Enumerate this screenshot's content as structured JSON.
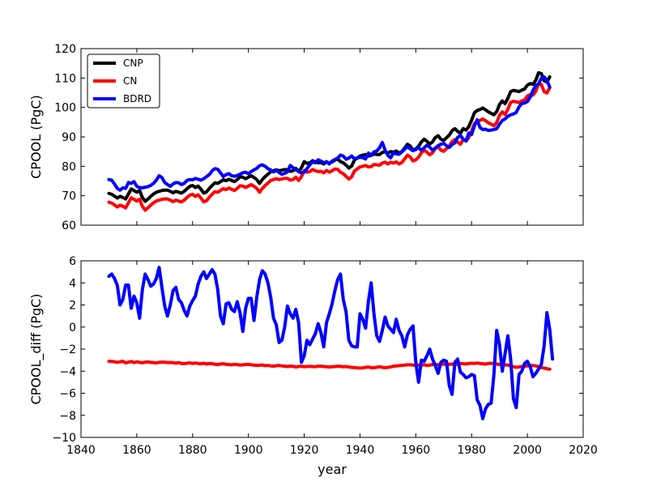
{
  "chart_data": [
    {
      "type": "line",
      "id": "top",
      "ylabel": "CPOOL (PgC)",
      "xlabel": "",
      "xlim": [
        1840,
        2020
      ],
      "ylim": [
        60,
        120
      ],
      "yticks": [
        60,
        70,
        80,
        90,
        100,
        110,
        120
      ],
      "yticklabels": [
        "60",
        "70",
        "80",
        "90",
        "100",
        "110",
        "120"
      ],
      "legend": {
        "placement": "top-left",
        "entries": [
          "CNP",
          "CN",
          "BDRD"
        ]
      },
      "series": [
        {
          "name": "CNP",
          "color": "#000000",
          "x_start": 1850,
          "x_step": 1,
          "values": [
            70.8,
            70.5,
            69.9,
            69.2,
            69.8,
            69.4,
            68.9,
            70.6,
            72.3,
            71.8,
            71.2,
            71.8,
            69.4,
            68.1,
            68.9,
            69.8,
            70.6,
            71.2,
            71.5,
            71.8,
            71.9,
            71.9,
            71.5,
            71.0,
            71.5,
            71.2,
            70.9,
            71.5,
            72.4,
            73.2,
            73.5,
            72.8,
            73.3,
            72.2,
            70.9,
            71.3,
            72.5,
            73.5,
            74.4,
            74.2,
            74.8,
            75.4,
            75.1,
            75.6,
            75.2,
            74.8,
            75.5,
            76.4,
            76.3,
            75.8,
            76.3,
            76.8,
            76.2,
            75.5,
            74.2,
            75.5,
            76.5,
            77.3,
            78.2,
            78.5,
            78.8,
            78.5,
            78.7,
            78.9,
            78.9,
            78.3,
            78.5,
            79.3,
            78.2,
            79.5,
            81.6,
            81.0,
            81.2,
            81.9,
            81.5,
            81.2,
            81.3,
            80.8,
            81.6,
            81.0,
            81.5,
            82.1,
            82.5,
            81.6,
            81.2,
            80.4,
            79.4,
            80.1,
            82.1,
            82.8,
            83.5,
            83.8,
            84.0,
            83.5,
            83.7,
            84.2,
            84.0,
            84.0,
            84.7,
            85.0,
            84.5,
            85.0,
            84.8,
            85.2,
            84.5,
            85.0,
            86.2,
            87.5,
            86.9,
            85.5,
            85.9,
            86.8,
            88.3,
            89.2,
            88.5,
            87.6,
            88.3,
            89.8,
            90.4,
            89.2,
            88.8,
            89.7,
            90.6,
            92.1,
            92.8,
            91.9,
            91.2,
            92.8,
            92.3,
            93.5,
            95.7,
            98.2,
            99.0,
            99.3,
            99.8,
            99.2,
            98.5,
            98.0,
            97.5,
            98.6,
            101.0,
            102.2,
            101.3,
            103.1,
            105.4,
            105.8,
            105.6,
            105.4,
            105.9,
            106.3,
            107.6,
            108.1,
            107.9,
            109.2,
            111.8,
            111.5,
            109.1,
            108.6,
            110.4
          ]
        },
        {
          "name": "CN",
          "color": "#ff0000",
          "x_start": 1850,
          "x_step": 1,
          "values": [
            67.8,
            67.5,
            66.9,
            66.2,
            66.8,
            66.4,
            65.9,
            67.6,
            69.3,
            68.8,
            68.2,
            68.8,
            66.4,
            65.1,
            65.9,
            66.8,
            67.6,
            68.2,
            68.5,
            68.8,
            68.9,
            68.9,
            68.5,
            68.0,
            68.5,
            68.2,
            67.9,
            68.5,
            69.4,
            70.2,
            70.5,
            69.8,
            70.3,
            69.2,
            67.9,
            68.3,
            69.5,
            70.5,
            71.4,
            71.2,
            71.8,
            72.4,
            72.1,
            72.6,
            72.2,
            71.8,
            72.5,
            73.4,
            73.3,
            72.8,
            73.3,
            73.8,
            73.2,
            72.5,
            71.2,
            72.5,
            73.5,
            74.3,
            75.2,
            75.5,
            75.8,
            75.5,
            75.7,
            75.9,
            75.9,
            75.3,
            75.5,
            76.3,
            75.2,
            76.5,
            78.6,
            78.0,
            78.2,
            78.9,
            78.5,
            78.2,
            78.3,
            77.8,
            78.6,
            78.0,
            78.5,
            79.1,
            79.0,
            78.0,
            77.5,
            76.6,
            75.7,
            76.4,
            78.4,
            79.1,
            79.8,
            80.0,
            80.3,
            79.8,
            79.9,
            80.6,
            80.5,
            80.4,
            81.1,
            81.4,
            80.8,
            81.4,
            81.1,
            81.5,
            80.8,
            81.3,
            82.5,
            83.8,
            83.2,
            81.8,
            82.2,
            83.1,
            84.6,
            85.5,
            84.8,
            83.9,
            84.6,
            86.1,
            86.7,
            85.5,
            85.1,
            86.0,
            86.9,
            88.4,
            89.1,
            88.2,
            87.5,
            89.1,
            88.6,
            89.8,
            92.0,
            94.5,
            95.3,
            95.6,
            96.1,
            95.5,
            94.8,
            94.3,
            93.8,
            94.9,
            97.3,
            98.5,
            97.6,
            99.4,
            101.7,
            102.1,
            101.9,
            101.7,
            102.2,
            102.6,
            103.9,
            104.4,
            104.2,
            105.5,
            108.1,
            107.8,
            105.4,
            104.9,
            106.7
          ]
        },
        {
          "name": "BDRD",
          "color": "#0000ff",
          "x_start": 1850,
          "x_step": 1,
          "values": [
            75.5,
            75.3,
            74.0,
            72.5,
            71.9,
            72.7,
            72.5,
            74.5,
            74.2,
            74.8,
            73.2,
            72.8,
            72.7,
            72.9,
            73.1,
            73.5,
            74.2,
            75.3,
            76.8,
            76.2,
            74.5,
            73.8,
            73.2,
            74.0,
            74.5,
            74.4,
            73.8,
            74.2,
            75.2,
            75.5,
            75.4,
            75.9,
            75.6,
            75.3,
            75.8,
            76.5,
            77.2,
            78.5,
            79.2,
            79.0,
            77.8,
            76.5,
            77.2,
            77.5,
            76.8,
            76.6,
            76.9,
            77.3,
            77.8,
            78.0,
            77.5,
            78.2,
            78.8,
            79.3,
            80.2,
            80.5,
            80.0,
            79.2,
            78.8,
            78.1,
            78.6,
            77.9,
            77.3,
            77.6,
            78.1,
            80.3,
            79.5,
            78.8,
            78.2,
            77.8,
            78.0,
            79.2,
            80.5,
            81.5,
            81.2,
            82.2,
            81.8,
            81.2,
            81.5,
            80.8,
            81.8,
            82.3,
            82.8,
            83.8,
            83.5,
            82.4,
            82.8,
            83.5,
            82.6,
            82.8,
            83.1,
            82.9,
            82.5,
            84.5,
            83.8,
            84.9,
            85.2,
            86.3,
            88.1,
            85.5,
            83.7,
            82.9,
            84.6,
            84.2,
            84.1,
            84.9,
            85.8,
            86.7,
            85.9,
            85.3,
            85.7,
            86.4,
            85.4,
            86.3,
            87.2,
            86.5,
            85.5,
            86.2,
            87.0,
            87.5,
            87.8,
            87.0,
            86.4,
            87.4,
            88.0,
            89.8,
            90.5,
            89.2,
            88.6,
            91.3,
            90.8,
            93.7,
            95.8,
            93.2,
            92.5,
            92.6,
            92.2,
            92.3,
            92.5,
            92.8,
            94.3,
            95.6,
            96.1,
            97.0,
            97.5,
            97.8,
            98.3,
            100.2,
            101.3,
            101.5,
            102.0,
            103.5,
            105.8,
            107.5,
            108.0,
            109.9,
            110.4,
            109.2,
            106.9
          ]
        }
      ]
    },
    {
      "type": "line",
      "id": "bottom",
      "ylabel": "CPOOL_diff (PgC)",
      "xlabel": "year",
      "xlim": [
        1840,
        2020
      ],
      "ylim": [
        -10,
        6
      ],
      "xticks": [
        1840,
        1860,
        1880,
        1900,
        1920,
        1940,
        1960,
        1980,
        2000,
        2020
      ],
      "xticklabels": [
        "1840",
        "1860",
        "1880",
        "1900",
        "1920",
        "1940",
        "1960",
        "1980",
        "2000",
        "2020"
      ],
      "yticks": [
        -10,
        -8,
        -6,
        -4,
        -2,
        0,
        2,
        4,
        6
      ],
      "yticklabels": [
        "−10",
        "−8",
        "−6",
        "−4",
        "−2",
        "0",
        "2",
        "4",
        "6"
      ],
      "series": [
        {
          "name": "CN",
          "color": "#ff0000",
          "x_start": 1850,
          "x_step": 1,
          "values": [
            -3.1,
            -3.12,
            -3.15,
            -3.2,
            -3.15,
            -3.1,
            -3.25,
            -3.18,
            -3.12,
            -3.22,
            -3.15,
            -3.2,
            -3.24,
            -3.18,
            -3.16,
            -3.2,
            -3.22,
            -3.25,
            -3.2,
            -3.18,
            -3.18,
            -3.22,
            -3.21,
            -3.23,
            -3.28,
            -3.22,
            -3.3,
            -3.32,
            -3.28,
            -3.25,
            -3.3,
            -3.26,
            -3.3,
            -3.32,
            -3.28,
            -3.35,
            -3.3,
            -3.32,
            -3.38,
            -3.4,
            -3.35,
            -3.33,
            -3.38,
            -3.4,
            -3.42,
            -3.38,
            -3.4,
            -3.45,
            -3.42,
            -3.4,
            -3.38,
            -3.42,
            -3.45,
            -3.48,
            -3.46,
            -3.44,
            -3.5,
            -3.48,
            -3.52,
            -3.55,
            -3.5,
            -3.48,
            -3.52,
            -3.55,
            -3.58,
            -3.54,
            -3.56,
            -3.62,
            -3.58,
            -3.55,
            -3.6,
            -3.58,
            -3.56,
            -3.58,
            -3.6,
            -3.54,
            -3.55,
            -3.58,
            -3.6,
            -3.62,
            -3.6,
            -3.58,
            -3.55,
            -3.56,
            -3.6,
            -3.58,
            -3.62,
            -3.65,
            -3.68,
            -3.7,
            -3.72,
            -3.7,
            -3.65,
            -3.62,
            -3.68,
            -3.7,
            -3.64,
            -3.6,
            -3.65,
            -3.68,
            -3.65,
            -3.62,
            -3.55,
            -3.52,
            -3.5,
            -3.48,
            -3.45,
            -3.42,
            -3.42,
            -3.45,
            -3.48,
            -3.45,
            -3.44,
            -3.42,
            -3.48,
            -3.45,
            -3.4,
            -3.38,
            -3.42,
            -3.4,
            -3.35,
            -3.4,
            -3.38,
            -3.36,
            -3.4,
            -3.35,
            -3.3,
            -3.32,
            -3.35,
            -3.3,
            -3.28,
            -3.3,
            -3.26,
            -3.3,
            -3.32,
            -3.36,
            -3.3,
            -3.28,
            -3.33,
            -3.35,
            -3.4,
            -3.38,
            -3.42,
            -3.45,
            -3.52,
            -3.6,
            -3.65,
            -3.62,
            -3.58,
            -3.55,
            -3.52,
            -3.5,
            -3.48,
            -3.52,
            -3.58,
            -3.68,
            -3.72,
            -3.78,
            -3.82
          ]
        },
        {
          "name": "BDRD",
          "color": "#0000ff",
          "x_start": 1850,
          "x_step": 1,
          "values": [
            4.6,
            4.8,
            4.4,
            3.8,
            2.0,
            2.5,
            3.8,
            3.8,
            1.7,
            2.8,
            2.2,
            0.8,
            3.4,
            4.8,
            4.3,
            3.7,
            3.9,
            4.4,
            5.4,
            3.6,
            1.9,
            1.0,
            2.0,
            3.3,
            3.6,
            2.5,
            2.2,
            1.5,
            1.0,
            1.9,
            2.4,
            2.8,
            3.9,
            4.6,
            5.0,
            4.4,
            4.8,
            5.2,
            4.8,
            3.4,
            1.0,
            0.3,
            2.1,
            2.2,
            1.6,
            1.4,
            2.3,
            1.3,
            -0.4,
            1.7,
            2.6,
            2.6,
            0.6,
            2.7,
            4.3,
            5.1,
            4.8,
            4.0,
            2.7,
            0.8,
            0.2,
            -1.4,
            -1.2,
            0.0,
            1.9,
            1.2,
            0.8,
            1.6,
            0.4,
            -3.2,
            -2.6,
            -1.2,
            -1.6,
            -1.1,
            -0.6,
            0.3,
            -0.5,
            -1.8,
            0.4,
            1.2,
            2.1,
            3.3,
            4.3,
            4.8,
            2.5,
            1.4,
            -1.2,
            -1.7,
            -1.8,
            -1.8,
            1.2,
            0.7,
            -0.1,
            2.3,
            4.0,
            1.2,
            -0.8,
            -1.3,
            -0.3,
            0.9,
            0.1,
            -0.2,
            -0.5,
            0.7,
            -0.3,
            -0.8,
            -1.8,
            -0.7,
            -0.2,
            0.1,
            -3.2,
            -5.0,
            -3.0,
            -3.1,
            -2.6,
            -2.0,
            -2.9,
            -3.5,
            -4.2,
            -3.2,
            -3.0,
            -3.1,
            -5.3,
            -6.1,
            -3.2,
            -2.9,
            -4.1,
            -4.3,
            -4.6,
            -4.5,
            -4.3,
            -4.4,
            -6.6,
            -7.1,
            -8.3,
            -7.4,
            -7.0,
            -6.9,
            -4.3,
            -0.3,
            -1.6,
            -4.0,
            -2.4,
            -0.8,
            -2.9,
            -6.5,
            -7.3,
            -4.3,
            -4.0,
            -3.3,
            -3.1,
            -3.6,
            -4.5,
            -4.2,
            -3.8,
            -3.4,
            -1.7,
            1.3,
            -0.2,
            -2.9
          ]
        }
      ]
    }
  ]
}
